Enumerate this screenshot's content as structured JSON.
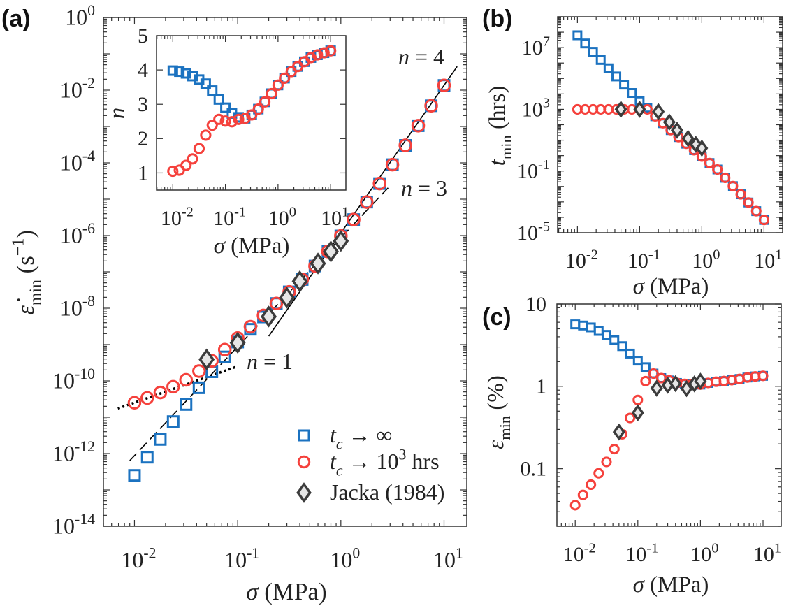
{
  "panels": {
    "a": "(a)",
    "b": "(b)",
    "c": "(c)"
  },
  "colors": {
    "t_c_infinite": "#1b72c0",
    "t_c_1e3": "#f5413c",
    "jacka": "#3c3c3c",
    "jacka_fill": "#e6e6e6"
  },
  "chart_data": [
    {
      "id": "a",
      "type": "scatter",
      "scale": {
        "x": "log",
        "y": "log"
      },
      "xlim": [
        0.005,
        16.6
      ],
      "ylim": [
        1e-14,
        1
      ],
      "xlabel": [
        [
          "σ",
          "it"
        ],
        [
          "  (MPa)",
          ""
        ]
      ],
      "ylabel": [
        [
          "ε̇",
          "it"
        ],
        [
          "min",
          "sub"
        ],
        [
          " (s",
          ""
        ],
        [
          "−1",
          "sup"
        ],
        [
          ")",
          ""
        ]
      ],
      "xticks": [
        {
          "v": 0.01,
          "base": "10",
          "exp": "-2"
        },
        {
          "v": 0.1,
          "base": "10",
          "exp": "-1"
        },
        {
          "v": 1,
          "base": "10",
          "exp": "0"
        },
        {
          "v": 10,
          "base": "10",
          "exp": "1"
        }
      ],
      "yticks": [
        {
          "v": 1,
          "base": "10",
          "exp": "0"
        },
        {
          "v": 0.01,
          "base": "10",
          "exp": "-2"
        },
        {
          "v": 0.0001,
          "base": "10",
          "exp": "-4"
        },
        {
          "v": 1e-06,
          "base": "10",
          "exp": "-6"
        },
        {
          "v": 1e-08,
          "base": "10",
          "exp": "-8"
        },
        {
          "v": 1e-10,
          "base": "10",
          "exp": "-10"
        },
        {
          "v": 1e-12,
          "base": "10",
          "exp": "-12"
        },
        {
          "v": 1e-14,
          "base": "10",
          "exp": "-14"
        }
      ],
      "legend": {
        "position": "bottom-right",
        "entries": [
          {
            "marker": "square",
            "label": [
              [
                "t",
                "it"
              ],
              [
                "c",
                "subit"
              ],
              [
                " → ∞",
                ""
              ]
            ]
          },
          {
            "marker": "circle",
            "label": [
              [
                "t",
                "it"
              ],
              [
                "c",
                "subit"
              ],
              [
                " → 10",
                ""
              ],
              [
                "3",
                "sup"
              ],
              [
                " hrs",
                ""
              ]
            ]
          },
          {
            "marker": "diamond",
            "label": [
              [
                "Jacka (1984)",
                ""
              ]
            ]
          }
        ]
      },
      "series": [
        {
          "name": "t_c → ∞",
          "marker": "square",
          "x": [
            0.01,
            0.0133,
            0.0178,
            0.0237,
            0.0316,
            0.0422,
            0.0562,
            0.075,
            0.1,
            0.133,
            0.178,
            0.237,
            0.316,
            0.422,
            0.562,
            0.75,
            1,
            1.33,
            1.78,
            2.37,
            3.16,
            4.22,
            5.62,
            7.5,
            10
          ],
          "y": [
            2.51e-13,
            7.94e-13,
            2.45e-12,
            7.59e-12,
            2.24e-11,
            6.46e-11,
            1.78e-10,
            4.57e-10,
            1.17e-09,
            2.63e-09,
            5.75e-09,
            1.35e-08,
            2.82e-08,
            6.17e-08,
            1.45e-07,
            3.63e-07,
            9.77e-07,
            2.75e-06,
            8.32e-06,
            2.69e-05,
            8.91e-05,
            0.000302,
            0.00105,
            0.00372,
            0.0135
          ]
        },
        {
          "name": "t_c → 10^3 hrs",
          "marker": "circle",
          "x": [
            0.01,
            0.0133,
            0.0178,
            0.0237,
            0.0316,
            0.0422,
            0.0562,
            0.075,
            0.1,
            0.133,
            0.178,
            0.237,
            0.316,
            0.422,
            0.562,
            0.75,
            1,
            1.33,
            1.78,
            2.37,
            3.16,
            4.22,
            5.62,
            7.5,
            10
          ],
          "y": [
            2.51e-11,
            3.39e-11,
            4.79e-11,
            6.92e-11,
            1.07e-10,
            1.86e-10,
            3.55e-10,
            7.24e-10,
            1.51e-09,
            3.09e-09,
            6.31e-09,
            1.35e-08,
            2.82e-08,
            6.17e-08,
            1.45e-07,
            3.63e-07,
            9.77e-07,
            2.75e-06,
            8.32e-06,
            2.69e-05,
            8.91e-05,
            0.000302,
            0.00105,
            0.00372,
            0.0135
          ]
        },
        {
          "name": "Jacka (1984)",
          "marker": "diamond",
          "x": [
            0.05,
            0.1,
            0.2,
            0.3,
            0.4,
            0.6,
            0.8,
            1.0
          ],
          "y": [
            3.89e-10,
            1.12e-09,
            5.89e-09,
            1.95e-08,
            5.5e-08,
            1.7e-07,
            3.63e-07,
            7.08e-07
          ]
        }
      ],
      "fit_lines": [
        {
          "label": "n = 4",
          "n": 4,
          "style": "solid",
          "x": [
            0.2,
            13.4
          ],
          "y": [
            1.7e-09,
            0.0447
          ]
        },
        {
          "label": "n = 3",
          "n": 3,
          "style": "dashed",
          "x": [
            0.009,
            2.87
          ],
          "y": [
            6.4e-13,
            2.05e-05
          ]
        },
        {
          "label": "n = 1",
          "n": 1,
          "style": "dotted",
          "x": [
            0.0069,
            0.099
          ],
          "y": [
            1.74e-11,
            2.5e-10
          ]
        }
      ]
    },
    {
      "id": "a-inset",
      "type": "scatter",
      "scale": {
        "x": "log",
        "y": "linear"
      },
      "xlim": [
        0.0049,
        19.5
      ],
      "ylim": [
        0.5,
        5
      ],
      "xlabel": [
        [
          "σ",
          "it"
        ],
        [
          "  (MPa)",
          ""
        ]
      ],
      "ylabel": [
        [
          "n",
          "it"
        ]
      ],
      "xticks": [
        {
          "v": 0.01,
          "base": "10",
          "exp": "-2"
        },
        {
          "v": 0.1,
          "base": "10",
          "exp": "-1"
        },
        {
          "v": 1,
          "base": "10",
          "exp": "0"
        },
        {
          "v": 10,
          "base": "10",
          "exp": "1"
        }
      ],
      "yticks": [
        {
          "v": 1,
          "base": "1"
        },
        {
          "v": 2,
          "base": "2"
        },
        {
          "v": 3,
          "base": "3"
        },
        {
          "v": 4,
          "base": "4"
        },
        {
          "v": 5,
          "base": "5"
        }
      ],
      "series": [
        {
          "name": "t_c → ∞",
          "marker": "square",
          "x": [
            0.01,
            0.0133,
            0.0178,
            0.0237,
            0.0316,
            0.0422,
            0.0562,
            0.075,
            0.1,
            0.133,
            0.178,
            0.237,
            0.316,
            0.422,
            0.562,
            0.75,
            1,
            1.33,
            1.78,
            2.37,
            3.16,
            4.22,
            5.62,
            7.5,
            10
          ],
          "y": [
            3.98,
            3.95,
            3.9,
            3.82,
            3.72,
            3.6,
            3.4,
            3.14,
            2.9,
            2.73,
            2.62,
            2.59,
            2.69,
            2.86,
            3.07,
            3.31,
            3.56,
            3.76,
            3.95,
            4.1,
            4.24,
            4.36,
            4.44,
            4.5,
            4.56
          ]
        },
        {
          "name": "t_c → 10^3 hrs",
          "marker": "circle",
          "x": [
            0.01,
            0.0133,
            0.0178,
            0.0237,
            0.0316,
            0.0422,
            0.0562,
            0.075,
            0.1,
            0.133,
            0.178,
            0.237,
            0.316,
            0.422,
            0.562,
            0.75,
            1,
            1.33,
            1.78,
            2.37,
            3.16,
            4.22,
            5.62,
            7.5,
            10
          ],
          "y": [
            1.05,
            1.08,
            1.22,
            1.41,
            1.71,
            2.1,
            2.39,
            2.56,
            2.51,
            2.49,
            2.56,
            2.59,
            2.69,
            2.86,
            3.07,
            3.31,
            3.56,
            3.76,
            3.95,
            4.1,
            4.24,
            4.36,
            4.44,
            4.5,
            4.56
          ]
        }
      ]
    },
    {
      "id": "b",
      "type": "scatter",
      "scale": {
        "x": "log",
        "y": "log"
      },
      "xlim": [
        0.0048,
        19.9
      ],
      "ylim": [
        1e-05,
        1000000000.0
      ],
      "xlabel": [
        [
          "σ",
          "it"
        ],
        [
          "  (MPa)",
          ""
        ]
      ],
      "ylabel": [
        [
          "t",
          "it"
        ],
        [
          "min",
          "sub"
        ],
        [
          " (hrs)",
          ""
        ]
      ],
      "xticks": [
        {
          "v": 0.01,
          "base": "10",
          "exp": "-2"
        },
        {
          "v": 0.1,
          "base": "10",
          "exp": "-1"
        },
        {
          "v": 1,
          "base": "10",
          "exp": "0"
        },
        {
          "v": 10,
          "base": "10",
          "exp": "1"
        }
      ],
      "yticks": [
        {
          "v": 10000000.0,
          "base": "10",
          "exp": "7"
        },
        {
          "v": 1000.0,
          "base": "10",
          "exp": "3"
        },
        {
          "v": 0.1,
          "base": "10",
          "exp": "-1"
        },
        {
          "v": 1e-05,
          "base": "10",
          "exp": "-5"
        }
      ],
      "series": [
        {
          "name": "t_c → ∞",
          "marker": "square",
          "x": [
            0.01,
            0.0133,
            0.0178,
            0.0237,
            0.0316,
            0.0422,
            0.0562,
            0.075,
            0.1,
            0.133,
            0.178,
            0.237,
            0.316,
            0.422,
            0.562,
            0.75,
            1,
            1.33,
            1.78,
            2.37,
            3.16,
            4.22,
            5.62,
            7.5,
            10
          ],
          "y": [
            63100000.0,
            18600000.0,
            5370000.0,
            1580000.0,
            457000.0,
            135000.0,
            39800.0,
            11500.0,
            3390,
            1260,
            355,
            126,
            44.7,
            15.8,
            5.89,
            2.24,
            0.871,
            0.331,
            0.126,
            0.0363,
            0.0105,
            0.00309,
            0.000912,
            0.000251,
            6.76e-05
          ]
        },
        {
          "name": "t_c → 10^3 hrs",
          "marker": "circle",
          "x": [
            0.01,
            0.0133,
            0.0178,
            0.0237,
            0.0316,
            0.0422,
            0.0562,
            0.075,
            0.1,
            0.133,
            0.178,
            0.237,
            0.316,
            0.422,
            0.562,
            0.75,
            1,
            1.33,
            1.78,
            2.37,
            3.16,
            4.22,
            5.62,
            7.5,
            10
          ],
          "y": [
            1000,
            1000,
            1000,
            1000,
            1000,
            1000,
            1000,
            1000,
            1000,
            1000,
            355,
            126,
            44.7,
            15.8,
            5.89,
            2.24,
            0.871,
            0.331,
            0.126,
            0.0363,
            0.0105,
            0.00309,
            0.000912,
            0.000251,
            6.76e-05
          ]
        },
        {
          "name": "Jacka (1984)",
          "marker": "diamond",
          "x": [
            0.05,
            0.1,
            0.2,
            0.3,
            0.4,
            0.6,
            0.8,
            1.0
          ],
          "y": [
            1000,
            1000,
            708,
            148,
            43.7,
            12.9,
            5.37,
            3.02
          ]
        }
      ]
    },
    {
      "id": "c",
      "type": "scatter",
      "scale": {
        "x": "log",
        "y": "log"
      },
      "xlim": [
        0.0051,
        19.5
      ],
      "ylim": [
        0.02,
        10
      ],
      "xlabel": [
        [
          "σ",
          "it"
        ],
        [
          "  (MPa)",
          ""
        ]
      ],
      "ylabel": [
        [
          "ε",
          "it"
        ],
        [
          "min",
          "sub"
        ],
        [
          " (%)",
          ""
        ]
      ],
      "xticks": [
        {
          "v": 0.01,
          "base": "10",
          "exp": "-2"
        },
        {
          "v": 0.1,
          "base": "10",
          "exp": "-1"
        },
        {
          "v": 1,
          "base": "10",
          "exp": "0"
        },
        {
          "v": 10,
          "base": "10",
          "exp": "1"
        }
      ],
      "yticks": [
        {
          "v": 10,
          "base": "10"
        },
        {
          "v": 1,
          "base": "1"
        },
        {
          "v": 0.1,
          "base": "0.1"
        }
      ],
      "series": [
        {
          "name": "t_c → ∞",
          "marker": "square",
          "x": [
            0.01,
            0.0133,
            0.0178,
            0.0237,
            0.0316,
            0.0422,
            0.0562,
            0.075,
            0.1,
            0.133,
            0.178,
            0.237,
            0.316,
            0.422,
            0.562,
            0.75,
            1,
            1.33,
            1.78,
            2.37,
            3.16,
            4.22,
            5.62,
            7.5,
            10
          ],
          "y": [
            5.66,
            5.48,
            5.2,
            4.71,
            4.22,
            3.65,
            3.08,
            2.5,
            2.05,
            1.71,
            1.43,
            1.26,
            1.18,
            1.1,
            1.07,
            1.07,
            1.05,
            1.1,
            1.14,
            1.16,
            1.19,
            1.23,
            1.28,
            1.32,
            1.34
          ]
        },
        {
          "name": "t_c → 10^3 hrs",
          "marker": "circle",
          "x": [
            0.01,
            0.0133,
            0.0178,
            0.0237,
            0.0316,
            0.0422,
            0.0562,
            0.075,
            0.1,
            0.133,
            0.178,
            0.237,
            0.316,
            0.422,
            0.562,
            0.75,
            1,
            1.33,
            1.78,
            2.37,
            3.16,
            4.22,
            5.62,
            7.5,
            10
          ],
          "y": [
            0.036,
            0.048,
            0.064,
            0.088,
            0.121,
            0.173,
            0.262,
            0.413,
            0.684,
            1.155,
            1.43,
            1.26,
            1.18,
            1.1,
            1.07,
            1.07,
            1.05,
            1.1,
            1.14,
            1.16,
            1.19,
            1.23,
            1.28,
            1.32,
            1.34
          ]
        },
        {
          "name": "Jacka (1984)",
          "marker": "diamond",
          "x": [
            0.05,
            0.1,
            0.2,
            0.3,
            0.4,
            0.6,
            0.8,
            1.0
          ],
          "y": [
            0.279,
            0.478,
            0.948,
            1.03,
            1.08,
            0.938,
            1.07,
            1.155
          ]
        }
      ]
    }
  ]
}
